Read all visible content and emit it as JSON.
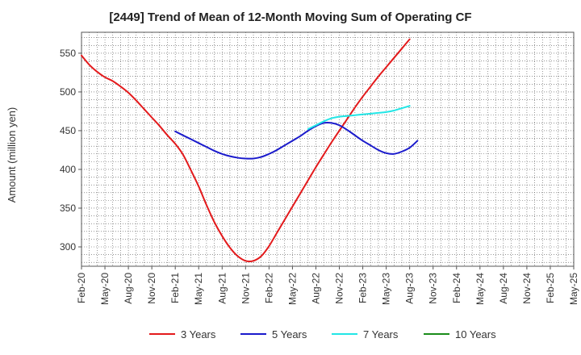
{
  "chart_data": {
    "type": "line",
    "title": "[2449]  Trend of Mean of 12-Month Moving Sum of Operating CF",
    "xlabel": "",
    "ylabel": "Amount (million yen)",
    "ylim": [
      275,
      577
    ],
    "yticks": [
      300,
      350,
      400,
      450,
      500,
      550
    ],
    "x_tick_labels": [
      "Feb-20",
      "May-20",
      "Aug-20",
      "Nov-20",
      "Feb-21",
      "May-21",
      "Aug-21",
      "Nov-21",
      "Feb-22",
      "May-22",
      "Aug-22",
      "Nov-22",
      "Feb-23",
      "May-23",
      "Aug-23",
      "Nov-23",
      "Feb-24",
      "May-24",
      "Aug-24",
      "Nov-24",
      "Feb-25",
      "May-25"
    ],
    "grid": true,
    "legend_position": "bottom",
    "series": [
      {
        "name": "3 Years",
        "color": "#e31a1c",
        "points": [
          [
            0,
            547
          ],
          [
            1,
            535
          ],
          [
            2,
            526
          ],
          [
            3,
            519
          ],
          [
            4,
            514
          ],
          [
            5,
            507
          ],
          [
            6,
            499
          ],
          [
            7,
            489
          ],
          [
            8,
            478
          ],
          [
            9,
            467
          ],
          [
            10,
            456
          ],
          [
            11,
            444
          ],
          [
            12,
            433
          ],
          [
            13,
            419
          ],
          [
            14,
            399
          ],
          [
            15,
            378
          ],
          [
            16,
            354
          ],
          [
            17,
            332
          ],
          [
            18,
            314
          ],
          [
            19,
            299
          ],
          [
            20,
            288
          ],
          [
            21,
            282
          ],
          [
            22,
            282
          ],
          [
            23,
            288
          ],
          [
            24,
            301
          ],
          [
            25,
            318
          ],
          [
            26,
            335
          ],
          [
            27,
            352
          ],
          [
            28,
            369
          ],
          [
            29,
            386
          ],
          [
            30,
            403
          ],
          [
            31,
            419
          ],
          [
            32,
            435
          ],
          [
            33,
            450
          ],
          [
            34,
            465
          ],
          [
            35,
            480
          ],
          [
            36,
            494
          ],
          [
            37,
            507
          ],
          [
            38,
            520
          ],
          [
            39,
            532
          ],
          [
            40,
            544
          ],
          [
            41,
            556
          ],
          [
            42,
            568
          ]
        ]
      },
      {
        "name": "5 Years",
        "color": "#1a1acc",
        "points": [
          [
            12,
            449
          ],
          [
            13,
            444
          ],
          [
            14,
            439
          ],
          [
            15,
            434
          ],
          [
            16,
            429
          ],
          [
            17,
            424
          ],
          [
            18,
            420
          ],
          [
            19,
            417
          ],
          [
            20,
            415
          ],
          [
            21,
            414
          ],
          [
            22,
            414
          ],
          [
            23,
            416
          ],
          [
            24,
            420
          ],
          [
            25,
            425
          ],
          [
            26,
            431
          ],
          [
            27,
            437
          ],
          [
            28,
            443
          ],
          [
            29,
            450
          ],
          [
            30,
            456
          ],
          [
            31,
            460
          ],
          [
            32,
            460
          ],
          [
            33,
            457
          ],
          [
            34,
            451
          ],
          [
            35,
            444
          ],
          [
            36,
            437
          ],
          [
            37,
            431
          ],
          [
            38,
            425
          ],
          [
            39,
            421
          ],
          [
            40,
            420
          ],
          [
            41,
            423
          ],
          [
            42,
            428
          ],
          [
            43,
            437
          ]
        ]
      },
      {
        "name": "7 Years",
        "color": "#22e6e6",
        "points": [
          [
            29,
            452
          ],
          [
            30,
            457
          ],
          [
            31,
            462
          ],
          [
            32,
            466
          ],
          [
            33,
            468
          ],
          [
            34,
            469
          ],
          [
            35,
            470
          ],
          [
            36,
            471
          ],
          [
            37,
            472
          ],
          [
            38,
            473
          ],
          [
            39,
            474
          ],
          [
            40,
            476
          ],
          [
            41,
            479
          ],
          [
            42,
            482
          ]
        ]
      },
      {
        "name": "10 Years",
        "color": "#1a8c1a",
        "points": []
      }
    ]
  }
}
